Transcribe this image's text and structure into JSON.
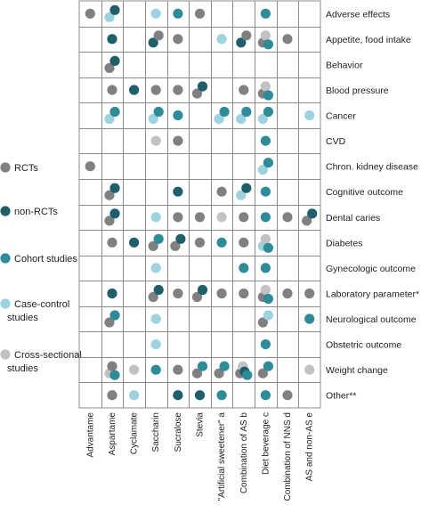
{
  "chart_data": {
    "type": "scatter",
    "legend_position": "left",
    "legend": [
      {
        "label": "RCTs",
        "color": "#808080"
      },
      {
        "label": "non-RCTs",
        "color": "#1f5f6c"
      },
      {
        "label": "Cohort studies",
        "color": "#2e8b9a"
      },
      {
        "label": "Case-control studies",
        "color": "#9dd3e0"
      },
      {
        "label": "Cross-sectional studies",
        "color": "#c2c2c2"
      }
    ],
    "rows": [
      "Adverse effects",
      "Appetite, food intake",
      "Behavior",
      "Blood pressure",
      "Cancer",
      "CVD",
      "Chron. kidney disease",
      "Cognitive outcome",
      "Dental caries",
      "Diabetes",
      "Gynecologic outcome",
      "Laboratory parameter*",
      "Neurological outcome",
      "Obstetric  outcome",
      "Weight change",
      "Other**"
    ],
    "columns": [
      "Advantame",
      "Aspartame",
      "Cyclamate",
      "Saccharin",
      "Sucralose",
      "Stevia",
      "\"Artificial sweetener\" a",
      "Combination of AS b",
      "Diet beverage c",
      "Combination of NNS d",
      "AS and non-AS e"
    ],
    "points": [
      {
        "row": 0,
        "col": 0,
        "type": "RCTs"
      },
      {
        "row": 0,
        "col": 1,
        "type": "Case-control studies"
      },
      {
        "row": 0,
        "col": 1,
        "type": "non-RCTs"
      },
      {
        "row": 0,
        "col": 3,
        "type": "Case-control studies"
      },
      {
        "row": 0,
        "col": 4,
        "type": "Cohort studies"
      },
      {
        "row": 0,
        "col": 5,
        "type": "RCTs"
      },
      {
        "row": 0,
        "col": 8,
        "type": "Cohort studies"
      },
      {
        "row": 1,
        "col": 1,
        "type": "non-RCTs"
      },
      {
        "row": 1,
        "col": 3,
        "type": "non-RCTs"
      },
      {
        "row": 1,
        "col": 3,
        "type": "RCTs"
      },
      {
        "row": 1,
        "col": 4,
        "type": "RCTs"
      },
      {
        "row": 1,
        "col": 6,
        "type": "Case-control studies"
      },
      {
        "row": 1,
        "col": 7,
        "type": "non-RCTs"
      },
      {
        "row": 1,
        "col": 7,
        "type": "RCTs"
      },
      {
        "row": 1,
        "col": 8,
        "type": "RCTs"
      },
      {
        "row": 1,
        "col": 8,
        "type": "Cross-sectional studies"
      },
      {
        "row": 1,
        "col": 8,
        "type": "Cohort studies"
      },
      {
        "row": 1,
        "col": 9,
        "type": "RCTs"
      },
      {
        "row": 2,
        "col": 1,
        "type": "RCTs"
      },
      {
        "row": 2,
        "col": 1,
        "type": "non-RCTs"
      },
      {
        "row": 3,
        "col": 1,
        "type": "RCTs"
      },
      {
        "row": 3,
        "col": 2,
        "type": "non-RCTs"
      },
      {
        "row": 3,
        "col": 3,
        "type": "RCTs"
      },
      {
        "row": 3,
        "col": 4,
        "type": "RCTs"
      },
      {
        "row": 3,
        "col": 5,
        "type": "RCTs"
      },
      {
        "row": 3,
        "col": 5,
        "type": "non-RCTs"
      },
      {
        "row": 3,
        "col": 7,
        "type": "RCTs"
      },
      {
        "row": 3,
        "col": 8,
        "type": "RCTs"
      },
      {
        "row": 3,
        "col": 8,
        "type": "Cross-sectional studies"
      },
      {
        "row": 3,
        "col": 8,
        "type": "Cohort studies"
      },
      {
        "row": 4,
        "col": 1,
        "type": "Case-control studies"
      },
      {
        "row": 4,
        "col": 1,
        "type": "Cohort studies"
      },
      {
        "row": 4,
        "col": 3,
        "type": "Case-control studies"
      },
      {
        "row": 4,
        "col": 3,
        "type": "Cohort studies"
      },
      {
        "row": 4,
        "col": 4,
        "type": "Cohort studies"
      },
      {
        "row": 4,
        "col": 6,
        "type": "Case-control studies"
      },
      {
        "row": 4,
        "col": 6,
        "type": "Cohort studies"
      },
      {
        "row": 4,
        "col": 7,
        "type": "Case-control studies"
      },
      {
        "row": 4,
        "col": 7,
        "type": "Cohort studies"
      },
      {
        "row": 4,
        "col": 8,
        "type": "Case-control studies"
      },
      {
        "row": 4,
        "col": 8,
        "type": "Cohort studies"
      },
      {
        "row": 4,
        "col": 10,
        "type": "Case-control studies"
      },
      {
        "row": 5,
        "col": 3,
        "type": "Cross-sectional studies"
      },
      {
        "row": 5,
        "col": 4,
        "type": "RCTs"
      },
      {
        "row": 5,
        "col": 8,
        "type": "Cohort studies"
      },
      {
        "row": 6,
        "col": 0,
        "type": "RCTs"
      },
      {
        "row": 6,
        "col": 8,
        "type": "Case-control studies"
      },
      {
        "row": 6,
        "col": 8,
        "type": "Cohort studies"
      },
      {
        "row": 7,
        "col": 1,
        "type": "RCTs"
      },
      {
        "row": 7,
        "col": 1,
        "type": "non-RCTs"
      },
      {
        "row": 7,
        "col": 4,
        "type": "non-RCTs"
      },
      {
        "row": 7,
        "col": 6,
        "type": "RCTs"
      },
      {
        "row": 7,
        "col": 7,
        "type": "Case-control studies"
      },
      {
        "row": 7,
        "col": 7,
        "type": "non-RCTs"
      },
      {
        "row": 7,
        "col": 8,
        "type": "Cohort studies"
      },
      {
        "row": 8,
        "col": 1,
        "type": "RCTs"
      },
      {
        "row": 8,
        "col": 1,
        "type": "non-RCTs"
      },
      {
        "row": 8,
        "col": 3,
        "type": "Case-control studies"
      },
      {
        "row": 8,
        "col": 4,
        "type": "RCTs"
      },
      {
        "row": 8,
        "col": 5,
        "type": "RCTs"
      },
      {
        "row": 8,
        "col": 6,
        "type": "Cross-sectional studies"
      },
      {
        "row": 8,
        "col": 7,
        "type": "RCTs"
      },
      {
        "row": 8,
        "col": 8,
        "type": "Cohort studies"
      },
      {
        "row": 8,
        "col": 9,
        "type": "RCTs"
      },
      {
        "row": 8,
        "col": 10,
        "type": "RCTs"
      },
      {
        "row": 8,
        "col": 10,
        "type": "non-RCTs"
      },
      {
        "row": 9,
        "col": 1,
        "type": "RCTs"
      },
      {
        "row": 9,
        "col": 2,
        "type": "non-RCTs"
      },
      {
        "row": 9,
        "col": 3,
        "type": "RCTs"
      },
      {
        "row": 9,
        "col": 3,
        "type": "Cohort studies"
      },
      {
        "row": 9,
        "col": 4,
        "type": "RCTs"
      },
      {
        "row": 9,
        "col": 4,
        "type": "non-RCTs"
      },
      {
        "row": 9,
        "col": 5,
        "type": "RCTs"
      },
      {
        "row": 9,
        "col": 6,
        "type": "Cohort studies"
      },
      {
        "row": 9,
        "col": 7,
        "type": "RCTs"
      },
      {
        "row": 9,
        "col": 8,
        "type": "Case-control studies"
      },
      {
        "row": 9,
        "col": 8,
        "type": "Cross-sectional studies"
      },
      {
        "row": 9,
        "col": 8,
        "type": "Cohort studies"
      },
      {
        "row": 10,
        "col": 3,
        "type": "Case-control studies"
      },
      {
        "row": 10,
        "col": 7,
        "type": "Cohort studies"
      },
      {
        "row": 10,
        "col": 8,
        "type": "Cohort studies"
      },
      {
        "row": 11,
        "col": 1,
        "type": "non-RCTs"
      },
      {
        "row": 11,
        "col": 3,
        "type": "RCTs"
      },
      {
        "row": 11,
        "col": 3,
        "type": "non-RCTs"
      },
      {
        "row": 11,
        "col": 4,
        "type": "RCTs"
      },
      {
        "row": 11,
        "col": 5,
        "type": "RCTs"
      },
      {
        "row": 11,
        "col": 5,
        "type": "non-RCTs"
      },
      {
        "row": 11,
        "col": 6,
        "type": "RCTs"
      },
      {
        "row": 11,
        "col": 7,
        "type": "RCTs"
      },
      {
        "row": 11,
        "col": 8,
        "type": "RCTs"
      },
      {
        "row": 11,
        "col": 8,
        "type": "Cross-sectional studies"
      },
      {
        "row": 11,
        "col": 8,
        "type": "Cohort studies"
      },
      {
        "row": 11,
        "col": 9,
        "type": "RCTs"
      },
      {
        "row": 11,
        "col": 10,
        "type": "RCTs"
      },
      {
        "row": 12,
        "col": 1,
        "type": "RCTs"
      },
      {
        "row": 12,
        "col": 1,
        "type": "Cohort studies"
      },
      {
        "row": 12,
        "col": 3,
        "type": "Case-control studies"
      },
      {
        "row": 12,
        "col": 8,
        "type": "RCTs"
      },
      {
        "row": 12,
        "col": 8,
        "type": "Case-control studies"
      },
      {
        "row": 12,
        "col": 10,
        "type": "Cohort studies"
      },
      {
        "row": 13,
        "col": 3,
        "type": "Case-control studies"
      },
      {
        "row": 13,
        "col": 8,
        "type": "Cohort studies"
      },
      {
        "row": 14,
        "col": 1,
        "type": "Cross-sectional studies"
      },
      {
        "row": 14,
        "col": 1,
        "type": "RCTs"
      },
      {
        "row": 14,
        "col": 1,
        "type": "Cohort studies"
      },
      {
        "row": 14,
        "col": 2,
        "type": "Cross-sectional studies"
      },
      {
        "row": 14,
        "col": 3,
        "type": "Cohort studies"
      },
      {
        "row": 14,
        "col": 4,
        "type": "RCTs"
      },
      {
        "row": 14,
        "col": 5,
        "type": "RCTs"
      },
      {
        "row": 14,
        "col": 5,
        "type": "Cohort studies"
      },
      {
        "row": 14,
        "col": 6,
        "type": "RCTs"
      },
      {
        "row": 14,
        "col": 6,
        "type": "Cohort studies"
      },
      {
        "row": 14,
        "col": 7,
        "type": "RCTs"
      },
      {
        "row": 14,
        "col": 7,
        "type": "Cross-sectional studies"
      },
      {
        "row": 14,
        "col": 7,
        "type": "non-RCTs"
      },
      {
        "row": 14,
        "col": 7,
        "type": "Cohort studies"
      },
      {
        "row": 14,
        "col": 8,
        "type": "RCTs"
      },
      {
        "row": 14,
        "col": 8,
        "type": "Cohort studies"
      },
      {
        "row": 14,
        "col": 10,
        "type": "Cross-sectional studies"
      },
      {
        "row": 15,
        "col": 1,
        "type": "RCTs"
      },
      {
        "row": 15,
        "col": 2,
        "type": "Case-control studies"
      },
      {
        "row": 15,
        "col": 4,
        "type": "non-RCTs"
      },
      {
        "row": 15,
        "col": 5,
        "type": "non-RCTs"
      },
      {
        "row": 15,
        "col": 6,
        "type": "Cohort studies"
      },
      {
        "row": 15,
        "col": 8,
        "type": "Cohort studies"
      },
      {
        "row": 15,
        "col": 9,
        "type": "RCTs"
      }
    ]
  }
}
